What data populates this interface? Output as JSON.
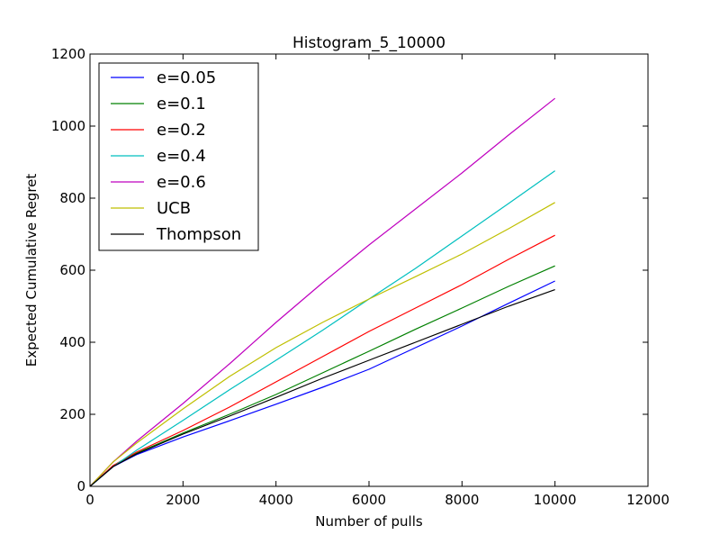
{
  "chart_data": {
    "type": "line",
    "title": "Histogram_5_10000",
    "xlabel": "Number of pulls",
    "ylabel": "Expected Cumulative Regret",
    "xlim": [
      0,
      12000
    ],
    "ylim": [
      0,
      1200
    ],
    "xticks": [
      0,
      2000,
      4000,
      6000,
      8000,
      10000,
      12000
    ],
    "yticks": [
      0,
      200,
      400,
      600,
      800,
      1000,
      1200
    ],
    "grid": false,
    "legend_position": "top-left",
    "x": [
      0,
      500,
      1000,
      2000,
      3000,
      4000,
      5000,
      6000,
      7000,
      8000,
      9000,
      10000
    ],
    "series": [
      {
        "name": "e=0.05",
        "color": "#0000ff",
        "values": [
          0,
          55,
          88,
          137,
          182,
          228,
          275,
          325,
          385,
          445,
          508,
          570
        ]
      },
      {
        "name": "e=0.1",
        "color": "#008000",
        "values": [
          0,
          57,
          92,
          148,
          200,
          255,
          315,
          375,
          436,
          495,
          555,
          612
        ]
      },
      {
        "name": "e=0.2",
        "color": "#ff0000",
        "values": [
          0,
          58,
          95,
          155,
          220,
          290,
          360,
          430,
          495,
          560,
          630,
          697
        ]
      },
      {
        "name": "e=0.4",
        "color": "#00bfbf",
        "values": [
          0,
          55,
          100,
          183,
          268,
          350,
          433,
          520,
          605,
          695,
          785,
          876
        ]
      },
      {
        "name": "e=0.6",
        "color": "#bf00bf",
        "values": [
          0,
          68,
          125,
          230,
          340,
          455,
          565,
          670,
          770,
          870,
          975,
          1077
        ]
      },
      {
        "name": "UCB",
        "color": "#bfbf00",
        "values": [
          0,
          68,
          120,
          215,
          305,
          385,
          455,
          520,
          582,
          645,
          715,
          788
        ]
      },
      {
        "name": "Thompson",
        "color": "#000000",
        "values": [
          0,
          55,
          90,
          145,
          195,
          247,
          300,
          350,
          400,
          450,
          500,
          546
        ]
      }
    ]
  }
}
